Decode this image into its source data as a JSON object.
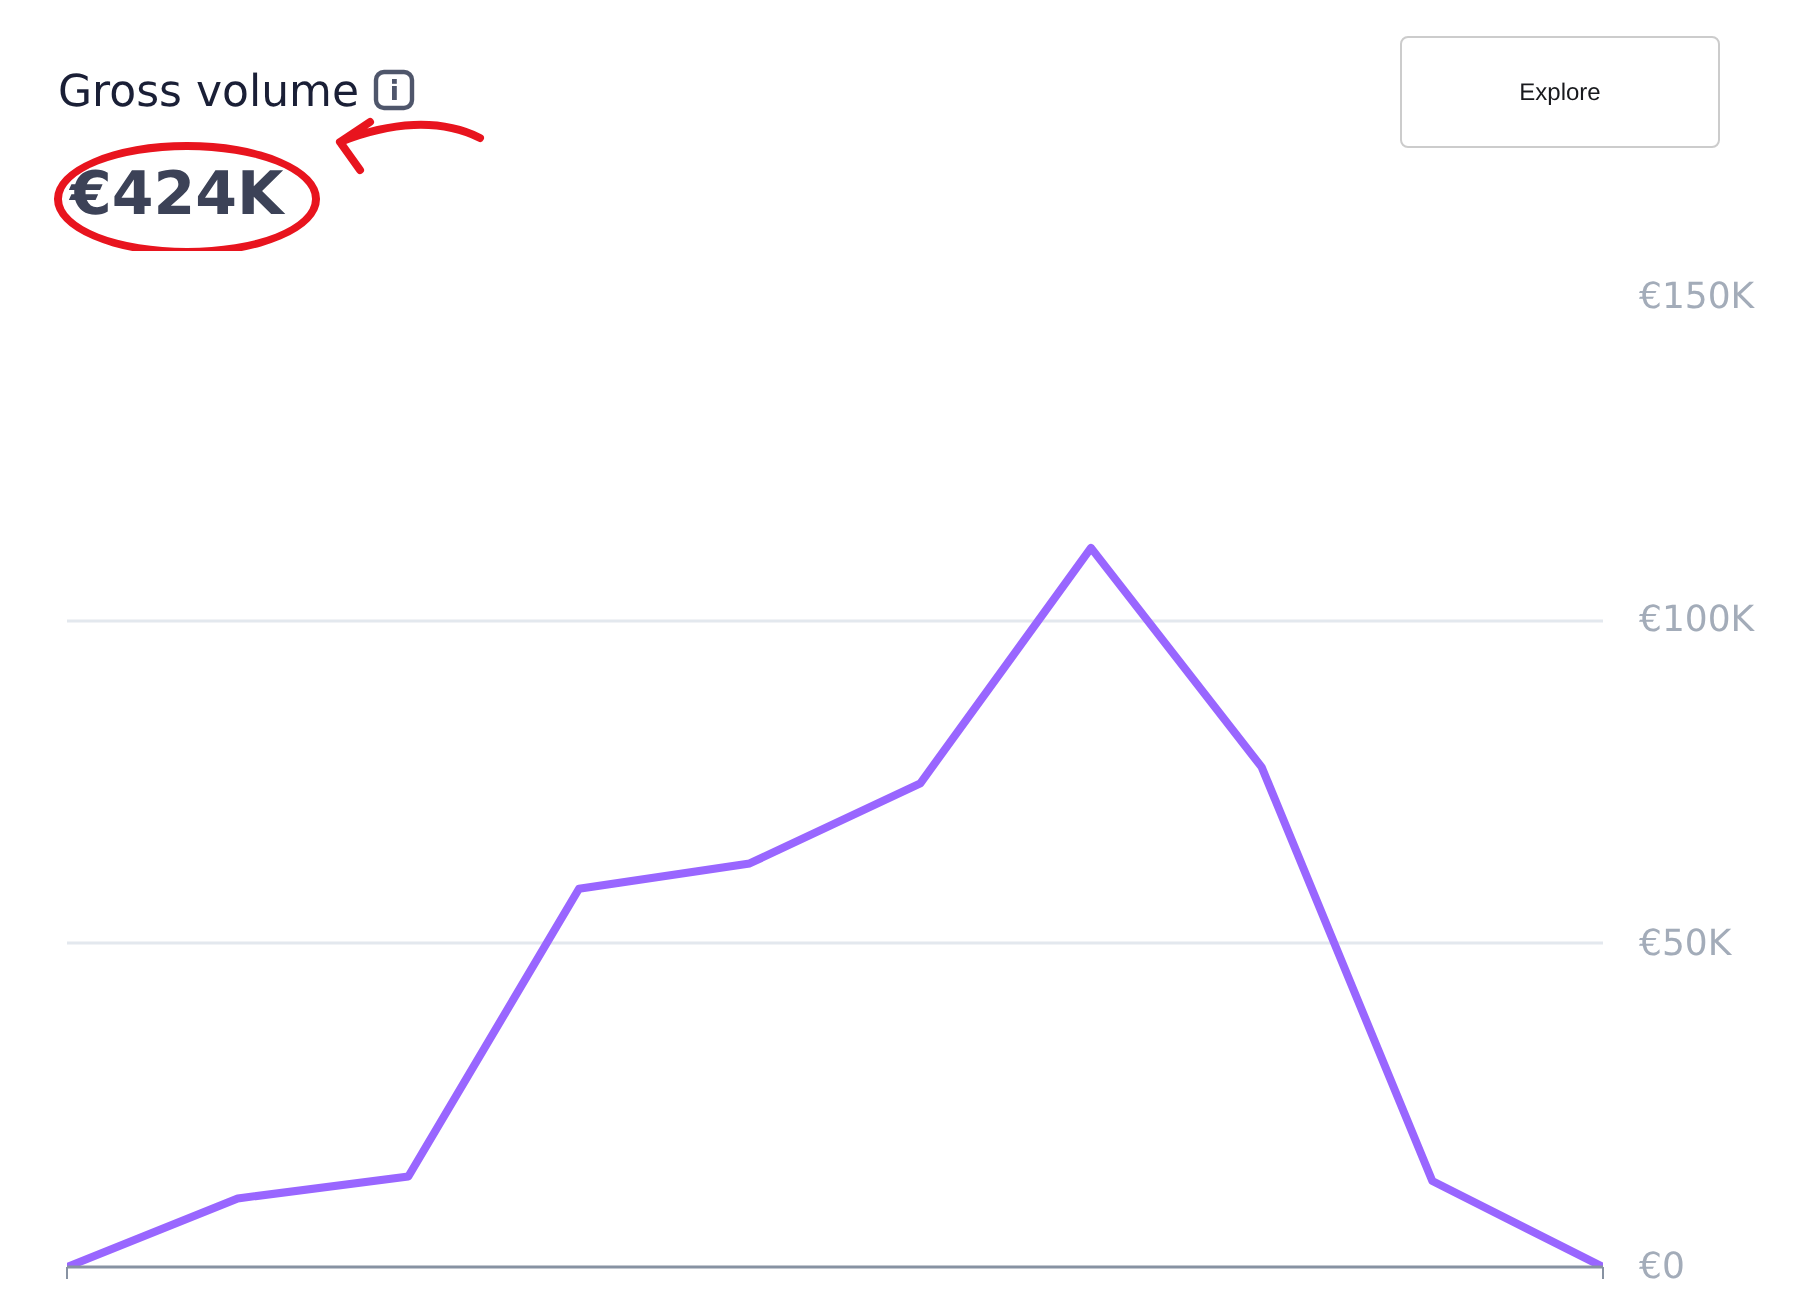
{
  "chart_data": {
    "type": "line",
    "title": "Gross volume",
    "subtitle": "€424K",
    "categories": [
      null,
      null,
      null,
      null,
      null,
      null,
      null,
      null,
      null,
      null
    ],
    "series": [
      {
        "color": "#9966ff",
        "values": [
          0,
          10600,
          14000,
          58500,
          62400,
          74800,
          111200,
          77300,
          13300,
          0
        ]
      }
    ],
    "ylim": [
      0,
      150000
    ],
    "yticks": [
      {
        "value": 0,
        "label": "€0"
      },
      {
        "value": 50000,
        "label": "€50K"
      },
      {
        "value": 100000,
        "label": "€100K"
      },
      {
        "value": 150000,
        "label": "€150K"
      }
    ],
    "grid": "y",
    "marker": "none",
    "line_style": "solid",
    "annotations": [
      "Explore"
    ]
  }
}
